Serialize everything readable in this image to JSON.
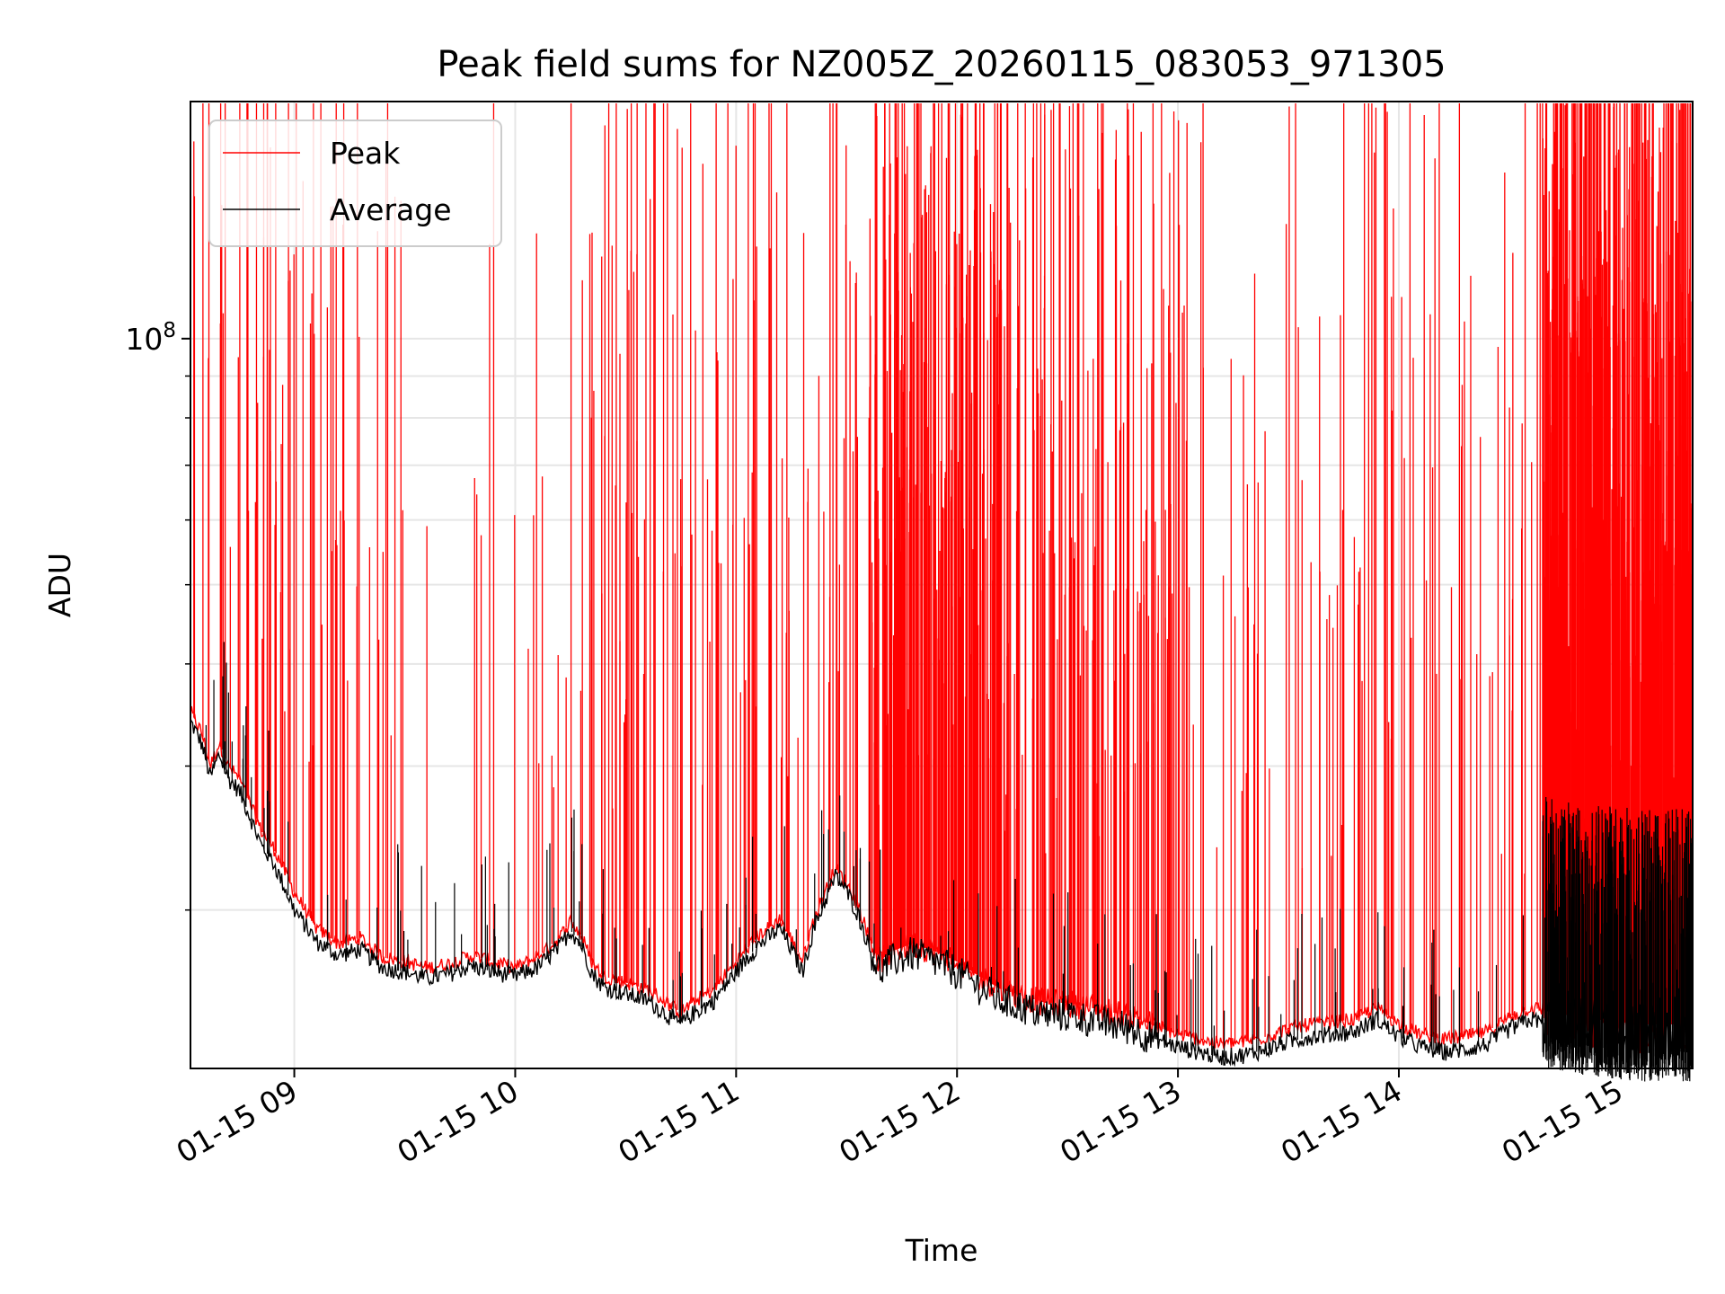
{
  "chart_data": {
    "type": "line",
    "title": "Peak field sums for NZ005Z_20260115_083053_971305",
    "xlabel": "Time",
    "ylabel": "ADU",
    "y_scale": "log",
    "y_tick_base": "10",
    "y_tick_exp": "8",
    "y_tick_value": 100000000,
    "ylim": [
      12800000,
      195000000
    ],
    "x_range_hours": [
      8.53,
      15.33
    ],
    "x_ticks": [
      {
        "label": "01-15 09",
        "hour": 9
      },
      {
        "label": "01-15 10",
        "hour": 10
      },
      {
        "label": "01-15 11",
        "hour": 11
      },
      {
        "label": "01-15 12",
        "hour": 12
      },
      {
        "label": "01-15 13",
        "hour": 13
      },
      {
        "label": "01-15 14",
        "hour": 14
      },
      {
        "label": "01-15 15",
        "hour": 15
      }
    ],
    "grid": true,
    "legend": {
      "position": "top-left",
      "entries": [
        "Peak",
        "Average"
      ]
    },
    "series": [
      {
        "name": "Peak",
        "color": "#ff0000",
        "baseline": {
          "hours": [
            8.53,
            8.58,
            8.62,
            8.66,
            8.7,
            8.75,
            8.8,
            8.85,
            8.9,
            8.95,
            9.0,
            9.1,
            9.2,
            9.3,
            9.4,
            9.5,
            9.6,
            9.7,
            9.8,
            9.9,
            10.0,
            10.1,
            10.2,
            10.25,
            10.3,
            10.35,
            10.4,
            10.5,
            10.6,
            10.7,
            10.75,
            10.8,
            10.9,
            11.0,
            11.1,
            11.2,
            11.3,
            11.35,
            11.45,
            11.5,
            11.55,
            11.6,
            11.65,
            11.7,
            11.8,
            11.9,
            12.0,
            12.1,
            12.2,
            12.3,
            12.4,
            12.5,
            12.6,
            12.7,
            12.8,
            12.9,
            13.0,
            13.1,
            13.2,
            13.3,
            13.4,
            13.5,
            13.6,
            13.7,
            13.8,
            13.9,
            14.0,
            14.1,
            14.2,
            14.3,
            14.4,
            14.5,
            14.6,
            14.7,
            14.8,
            14.9,
            15.0,
            15.1,
            15.2,
            15.33
          ],
          "values": [
            35000000,
            33000000,
            30000000,
            32000000,
            30000000,
            29000000,
            27000000,
            25000000,
            24000000,
            22500000,
            21000000,
            19000000,
            18200000,
            18500000,
            17500000,
            17300000,
            17000000,
            17200000,
            17600000,
            17300000,
            17000000,
            17500000,
            18500000,
            19400000,
            18600000,
            17200000,
            16600000,
            16300000,
            16000000,
            15300000,
            15000000,
            15400000,
            16000000,
            17300000,
            18600000,
            19500000,
            17300000,
            19400000,
            22500000,
            21600000,
            20300000,
            18600000,
            17300000,
            17800000,
            18200000,
            17800000,
            17300000,
            16600000,
            16000000,
            15700000,
            15400000,
            15400000,
            15200000,
            15000000,
            14800000,
            14400000,
            14100000,
            13900000,
            13700000,
            13800000,
            14000000,
            14300000,
            14500000,
            14600000,
            14700000,
            15200000,
            14500000,
            14100000,
            13900000,
            14000000,
            14200000,
            14800000,
            15200000,
            15000000,
            14800000,
            14700000,
            14600000,
            14500000,
            14500000,
            14500000
          ]
        },
        "spike_density": [
          {
            "from_hour": 8.53,
            "to_hour": 9.4,
            "spikes": 70
          },
          {
            "from_hour": 9.4,
            "to_hour": 10.3,
            "spikes": 25
          },
          {
            "from_hour": 10.3,
            "to_hour": 11.6,
            "spikes": 110
          },
          {
            "from_hour": 11.6,
            "to_hour": 12.2,
            "spikes": 260
          },
          {
            "from_hour": 12.2,
            "to_hour": 13.0,
            "spikes": 140
          },
          {
            "from_hour": 13.0,
            "to_hour": 13.8,
            "spikes": 45
          },
          {
            "from_hour": 13.8,
            "to_hour": 14.65,
            "spikes": 55
          },
          {
            "from_hour": 14.65,
            "to_hour": 15.33,
            "spikes": 700
          }
        ]
      },
      {
        "name": "Average",
        "color": "#000000",
        "baseline": {
          "hours": [
            8.53,
            8.58,
            8.62,
            8.66,
            8.7,
            8.75,
            8.8,
            8.85,
            8.9,
            8.95,
            9.0,
            9.1,
            9.2,
            9.3,
            9.4,
            9.5,
            9.6,
            9.7,
            9.8,
            9.9,
            10.0,
            10.1,
            10.2,
            10.25,
            10.3,
            10.35,
            10.4,
            10.5,
            10.6,
            10.7,
            10.75,
            10.8,
            10.9,
            11.0,
            11.1,
            11.2,
            11.3,
            11.35,
            11.45,
            11.5,
            11.55,
            11.6,
            11.65,
            11.7,
            11.8,
            11.9,
            12.0,
            12.1,
            12.2,
            12.3,
            12.4,
            12.5,
            12.6,
            12.7,
            12.8,
            12.9,
            13.0,
            13.1,
            13.2,
            13.3,
            13.4,
            13.5,
            13.6,
            13.7,
            13.8,
            13.9,
            14.0,
            14.1,
            14.2,
            14.3,
            14.4,
            14.5,
            14.6,
            14.7,
            14.8,
            14.9,
            15.0,
            15.1,
            15.2,
            15.33
          ],
          "values": [
            34000000,
            32000000,
            29000000,
            31000000,
            29000000,
            28000000,
            26000000,
            24000000,
            23000000,
            21500000,
            20000000,
            18300000,
            17600000,
            17900000,
            17000000,
            16800000,
            16500000,
            16700000,
            17100000,
            16800000,
            16600000,
            17000000,
            18000000,
            18900000,
            18100000,
            16700000,
            16100000,
            15800000,
            15500000,
            14800000,
            14500000,
            14900000,
            15500000,
            16800000,
            18100000,
            19000000,
            16800000,
            18900000,
            22000000,
            21100000,
            19800000,
            18100000,
            16800000,
            17300000,
            17700000,
            17300000,
            16800000,
            16100000,
            15500000,
            15200000,
            14900000,
            14900000,
            14700000,
            14500000,
            14300000,
            13900000,
            13600000,
            13400000,
            13200000,
            13300000,
            13500000,
            13800000,
            14000000,
            14100000,
            14200000,
            14700000,
            14000000,
            13600000,
            13400000,
            13500000,
            13700000,
            14300000,
            14700000,
            14500000,
            14300000,
            14200000,
            14100000,
            14000000,
            14000000,
            14000000
          ]
        }
      }
    ]
  }
}
